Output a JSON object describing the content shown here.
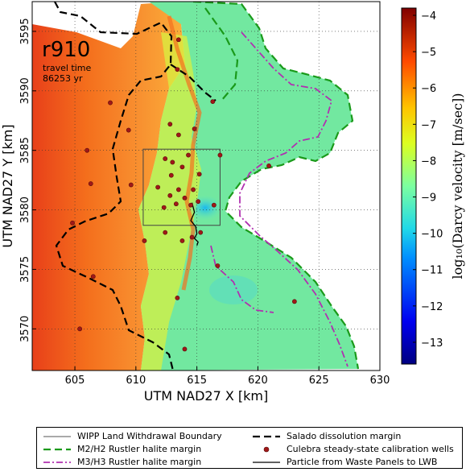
{
  "chart_data": {
    "type": "heatmap",
    "panel_title": "r910",
    "subtitle_line1": "travel time",
    "subtitle_line2": "86253 yr",
    "xlabel": "UTM NAD27 X [km]",
    "ylabel": "UTM NAD27 Y [km]",
    "colorbar_label": "log₁₀(Darcy velocity [m/sec])",
    "xlim": [
      601.5,
      630
    ],
    "ylim": [
      3566.5,
      3597.5
    ],
    "x_ticks": [
      "605",
      "610",
      "615",
      "620",
      "625",
      "630"
    ],
    "x_tick_values": [
      605,
      610,
      615,
      620,
      625,
      630
    ],
    "y_ticks": [
      "3570",
      "3575",
      "3580",
      "3585",
      "3590",
      "3595"
    ],
    "y_tick_values": [
      3570,
      3575,
      3580,
      3585,
      3590,
      3595
    ],
    "colorbar_range": [
      -13.6,
      -3.8
    ],
    "colorbar_ticks": [
      "−13",
      "−12",
      "−11",
      "−10",
      "−9",
      "−8",
      "−7",
      "−6",
      "−5",
      "−4"
    ],
    "colorbar_tick_values": [
      -13,
      -12,
      -11,
      -10,
      -9,
      -8,
      -7,
      -6,
      -5,
      -4
    ],
    "grid": true,
    "wipp_boundary": {
      "x": [
        610.6,
        616.9
      ],
      "y": [
        3578.7,
        3585.1
      ]
    },
    "wells": [
      {
        "x": 613.5,
        "y": 3594.3
      },
      {
        "x": 613.4,
        "y": 3591.8
      },
      {
        "x": 616.3,
        "y": 3589.1
      },
      {
        "x": 607.9,
        "y": 3589.0
      },
      {
        "x": 609.4,
        "y": 3586.7
      },
      {
        "x": 612.8,
        "y": 3587.2
      },
      {
        "x": 613.5,
        "y": 3586.3
      },
      {
        "x": 614.8,
        "y": 3586.8
      },
      {
        "x": 616.9,
        "y": 3584.6
      },
      {
        "x": 606.3,
        "y": 3582.2
      },
      {
        "x": 609.6,
        "y": 3582.1
      },
      {
        "x": 611.8,
        "y": 3581.9
      },
      {
        "x": 612.4,
        "y": 3584.3
      },
      {
        "x": 613.0,
        "y": 3584.0
      },
      {
        "x": 613.8,
        "y": 3583.6
      },
      {
        "x": 614.3,
        "y": 3584.6
      },
      {
        "x": 612.9,
        "y": 3582.9
      },
      {
        "x": 613.5,
        "y": 3581.7
      },
      {
        "x": 614.0,
        "y": 3581.0
      },
      {
        "x": 614.7,
        "y": 3581.7
      },
      {
        "x": 615.1,
        "y": 3580.7
      },
      {
        "x": 612.8,
        "y": 3581.2
      },
      {
        "x": 613.3,
        "y": 3580.5
      },
      {
        "x": 612.3,
        "y": 3580.2
      },
      {
        "x": 614.5,
        "y": 3580.4
      },
      {
        "x": 616.4,
        "y": 3580.4
      },
      {
        "x": 615.3,
        "y": 3578.1
      },
      {
        "x": 614.6,
        "y": 3577.7
      },
      {
        "x": 613.8,
        "y": 3577.4
      },
      {
        "x": 610.7,
        "y": 3577.4
      },
      {
        "x": 616.7,
        "y": 3575.3
      },
      {
        "x": 604.8,
        "y": 3578.9
      },
      {
        "x": 606.5,
        "y": 3574.4
      },
      {
        "x": 613.4,
        "y": 3572.6
      },
      {
        "x": 623.0,
        "y": 3572.3
      },
      {
        "x": 605.4,
        "y": 3570.0
      },
      {
        "x": 614.0,
        "y": 3568.3
      },
      {
        "x": 606.0,
        "y": 3585.0
      },
      {
        "x": 620.9,
        "y": 3583.7
      },
      {
        "x": 615.2,
        "y": 3583.0
      },
      {
        "x": 612.4,
        "y": 3578.1
      }
    ],
    "particle_path": {
      "x": [
        614.6,
        614.8,
        614.5,
        614.9,
        615.0,
        614.8,
        615.1,
        615.0
      ],
      "y": [
        3580.6,
        3579.8,
        3579.1,
        3578.6,
        3578.0,
        3577.6,
        3577.3,
        3577.0
      ]
    },
    "legend": [
      {
        "label": "WIPP Land Withdrawal Boundary",
        "style": "thin-solid",
        "color": "#555555"
      },
      {
        "label": "Salado dissolution margin",
        "style": "thick-dashed",
        "color": "#000000"
      },
      {
        "label": "M2/H2 Rustler halite margin",
        "style": "thick-dashed",
        "color": "#1a9a1a"
      },
      {
        "label": "Culebra steady-state calibration wells",
        "style": "marker",
        "color": "#a01818"
      },
      {
        "label": "M3/H3 Rustler halite margin",
        "style": "dash-dot",
        "color": "#b030b0"
      },
      {
        "label": "Particle from Waste Panels to LWB",
        "style": "solid",
        "color": "#000000"
      }
    ]
  }
}
